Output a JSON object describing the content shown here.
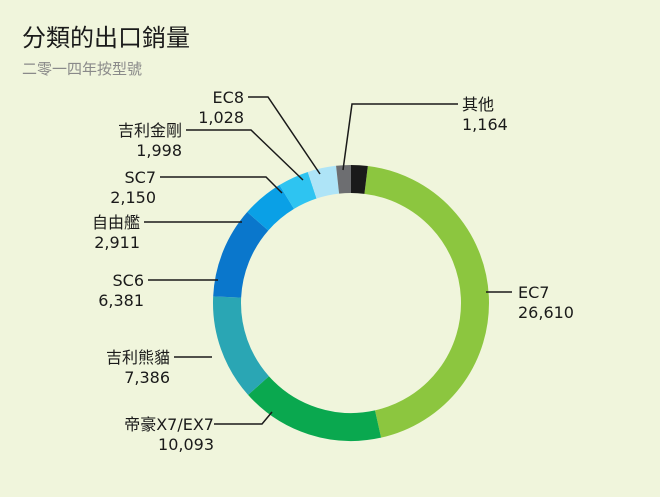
{
  "chart_data": {
    "type": "pie",
    "title": "分類的出口銷量",
    "subtitle": "二零一四年按型號",
    "slices": [
      {
        "label": "EC7",
        "value": 26610,
        "value_text": "26,610",
        "color": "#8cc63f"
      },
      {
        "label": "帝豪X7/EX7",
        "value": 10093,
        "value_text": "10,093",
        "color": "#0aa84f"
      },
      {
        "label": "吉利熊貓",
        "value": 7386,
        "value_text": "7,386",
        "color": "#2aa6b4"
      },
      {
        "label": "SC6",
        "value": 6381,
        "value_text": "6,381",
        "color": "#0a77cc"
      },
      {
        "label": "自由艦",
        "value": 2911,
        "value_text": "2,911",
        "color": "#0aa0e6"
      },
      {
        "label": "SC7",
        "value": 2150,
        "value_text": "2,150",
        "color": "#2ec4f1"
      },
      {
        "label": "吉利金剛",
        "value": 1998,
        "value_text": "1,998",
        "color": "#aee4f7"
      },
      {
        "label": "EC8",
        "value": 1028,
        "value_text": "1,028",
        "color": "#6d6e71"
      },
      {
        "label": "其他",
        "value": 1164,
        "value_text": "1,164",
        "color": "#1a1a1a"
      }
    ]
  }
}
